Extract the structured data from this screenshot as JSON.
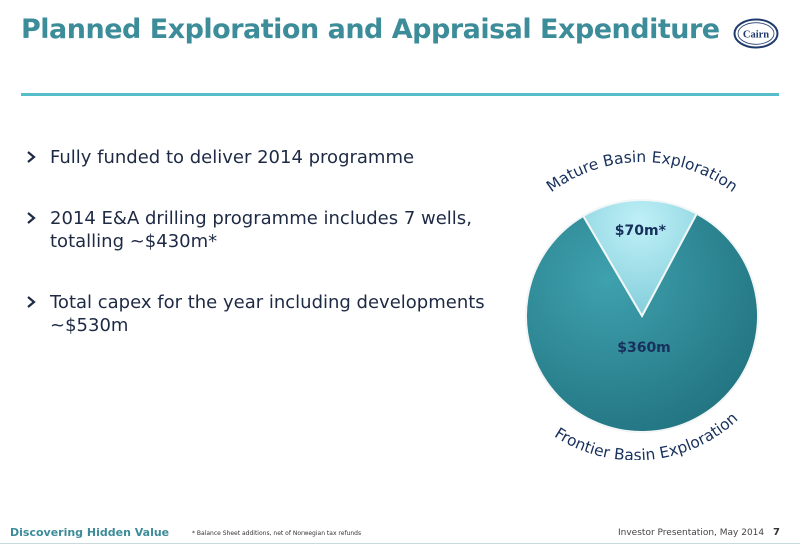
{
  "header": {
    "title": "Planned Exploration and Appraisal Expenditure",
    "logo_text": "Cairn"
  },
  "bullets": [
    {
      "text": "Fully funded to deliver 2014 programme"
    },
    {
      "text": "2014 E&A drilling programme includes 7 wells, totalling ~$430m*"
    },
    {
      "text": "Total capex for the year including developments ~$530m"
    }
  ],
  "chart_data": {
    "type": "pie",
    "categories": [
      "Mature Basin Exploration",
      "Frontier Basin Exploration"
    ],
    "values": [
      70,
      360
    ],
    "data_labels": [
      "$70m*",
      "$360m"
    ],
    "colors": [
      "#8fd5e2",
      "#2b8290"
    ]
  },
  "footer": {
    "tagline": "Discovering Hidden Value",
    "footnote": "* Balance Sheet additions, net of Norwegian tax refunds",
    "presentation": "Investor Presentation, May 2014",
    "page_number": "7"
  },
  "colors": {
    "accent": "#3d8c99",
    "rule": "#56bdcb",
    "body_text": "#1e2a44"
  }
}
